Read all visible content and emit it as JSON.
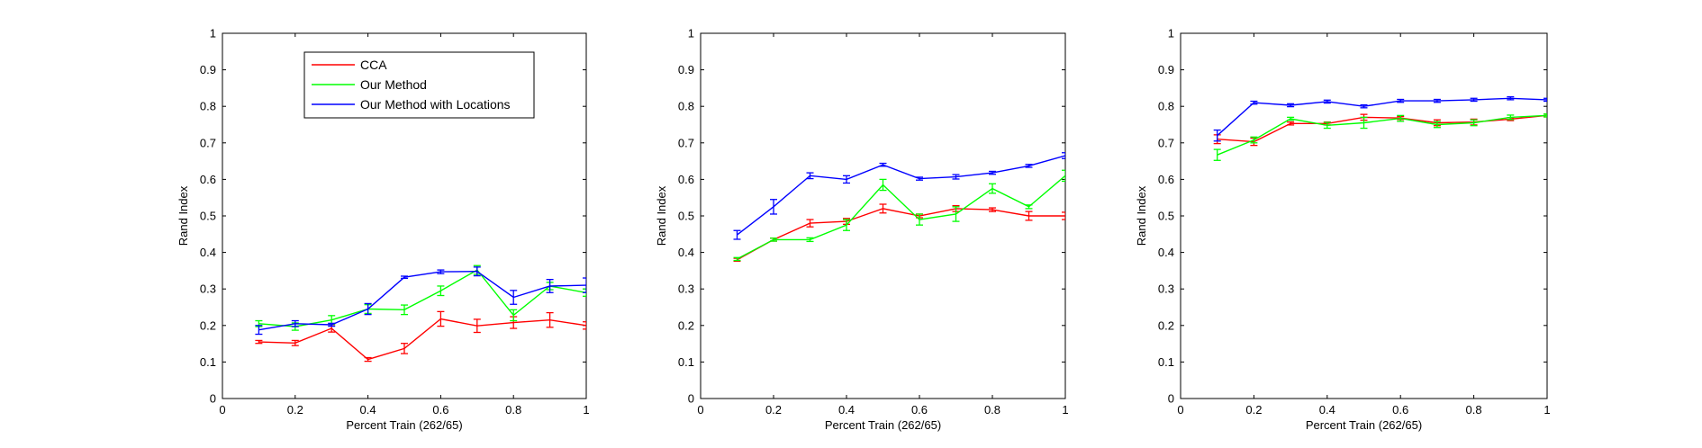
{
  "chart_data": [
    {
      "type": "line",
      "xlabel": "Percent Train (262/65)",
      "ylabel": "Rand Index",
      "xlim": [
        0,
        1
      ],
      "ylim": [
        0,
        1
      ],
      "xticks": [
        "0",
        "0.2",
        "0.4",
        "0.6",
        "0.8",
        "1"
      ],
      "yticks": [
        "0",
        "0.1",
        "0.2",
        "0.3",
        "0.4",
        "0.5",
        "0.6",
        "0.7",
        "0.8",
        "0.9",
        "1"
      ],
      "legend": "top-center",
      "x": [
        0.1,
        0.2,
        0.3,
        0.4,
        0.5,
        0.6,
        0.7,
        0.8,
        0.9,
        1.0
      ],
      "series": [
        {
          "name": "CCA",
          "color": "#ff0000",
          "values": [
            0.155,
            0.152,
            0.192,
            0.107,
            0.137,
            0.218,
            0.199,
            0.208,
            0.215,
            0.2
          ],
          "errors": [
            0.004,
            0.007,
            0.01,
            0.005,
            0.014,
            0.02,
            0.018,
            0.016,
            0.02,
            0.01
          ]
        },
        {
          "name": "Our Method",
          "color": "#00ff00",
          "values": [
            0.205,
            0.197,
            0.215,
            0.245,
            0.243,
            0.295,
            0.352,
            0.228,
            0.308,
            0.29
          ],
          "errors": [
            0.008,
            0.01,
            0.012,
            0.012,
            0.013,
            0.013,
            0.012,
            0.015,
            0.01,
            0.01
          ]
        },
        {
          "name": "Our Method with Locations",
          "color": "#0000ff",
          "values": [
            0.188,
            0.205,
            0.202,
            0.245,
            0.332,
            0.347,
            0.348,
            0.277,
            0.308,
            0.31
          ],
          "errors": [
            0.012,
            0.008,
            0.004,
            0.015,
            0.003,
            0.005,
            0.012,
            0.019,
            0.018,
            0.02
          ]
        }
      ]
    },
    {
      "type": "line",
      "xlabel": "Percent Train (262/65)",
      "ylabel": "Rand Index",
      "xlim": [
        0,
        1
      ],
      "ylim": [
        0,
        1
      ],
      "xticks": [
        "0",
        "0.2",
        "0.4",
        "0.6",
        "0.8",
        "1"
      ],
      "yticks": [
        "0",
        "0.1",
        "0.2",
        "0.3",
        "0.4",
        "0.5",
        "0.6",
        "0.7",
        "0.8",
        "0.9",
        "1"
      ],
      "x": [
        0.1,
        0.2,
        0.3,
        0.4,
        0.5,
        0.6,
        0.7,
        0.8,
        0.9,
        1.0
      ],
      "series": [
        {
          "name": "CCA",
          "color": "#ff0000",
          "values": [
            0.38,
            0.435,
            0.48,
            0.485,
            0.52,
            0.5,
            0.52,
            0.517,
            0.5,
            0.5
          ],
          "errors": [
            0.004,
            0.004,
            0.01,
            0.008,
            0.012,
            0.005,
            0.008,
            0.005,
            0.012,
            0.01
          ]
        },
        {
          "name": "Our Method",
          "color": "#00ff00",
          "values": [
            0.382,
            0.435,
            0.435,
            0.475,
            0.585,
            0.49,
            0.505,
            0.575,
            0.525,
            0.61
          ],
          "errors": [
            0.004,
            0.004,
            0.005,
            0.015,
            0.015,
            0.015,
            0.02,
            0.013,
            0.005,
            0.015
          ]
        },
        {
          "name": "Our Method with Locations",
          "color": "#0000ff",
          "values": [
            0.448,
            0.525,
            0.61,
            0.6,
            0.64,
            0.602,
            0.607,
            0.618,
            0.637,
            0.665
          ],
          "errors": [
            0.012,
            0.02,
            0.008,
            0.01,
            0.004,
            0.004,
            0.006,
            0.004,
            0.004,
            0.008
          ]
        }
      ]
    },
    {
      "type": "line",
      "xlabel": "Percent Train (262/65)",
      "ylabel": "Rand Index",
      "xlim": [
        0,
        1
      ],
      "ylim": [
        0,
        1
      ],
      "xticks": [
        "0",
        "0.2",
        "0.4",
        "0.6",
        "0.8",
        "1"
      ],
      "yticks": [
        "0",
        "0.1",
        "0.2",
        "0.3",
        "0.4",
        "0.5",
        "0.6",
        "0.7",
        "0.8",
        "0.9",
        "1"
      ],
      "x": [
        0.1,
        0.2,
        0.3,
        0.4,
        0.5,
        0.6,
        0.7,
        0.8,
        0.9,
        1.0
      ],
      "series": [
        {
          "name": "CCA",
          "color": "#ff0000",
          "values": [
            0.71,
            0.703,
            0.753,
            0.753,
            0.77,
            0.768,
            0.755,
            0.757,
            0.765,
            0.775
          ],
          "errors": [
            0.012,
            0.01,
            0.004,
            0.004,
            0.008,
            0.004,
            0.008,
            0.008,
            0.004,
            0.004
          ]
        },
        {
          "name": "Our Method",
          "color": "#00ff00",
          "values": [
            0.667,
            0.708,
            0.766,
            0.748,
            0.755,
            0.767,
            0.75,
            0.755,
            0.77,
            0.775
          ],
          "errors": [
            0.015,
            0.008,
            0.004,
            0.008,
            0.015,
            0.008,
            0.008,
            0.008,
            0.006,
            0.004
          ]
        },
        {
          "name": "Our Method with Locations",
          "color": "#0000ff",
          "values": [
            0.72,
            0.81,
            0.803,
            0.813,
            0.8,
            0.815,
            0.815,
            0.818,
            0.822,
            0.818
          ],
          "errors": [
            0.015,
            0.004,
            0.004,
            0.004,
            0.004,
            0.004,
            0.004,
            0.004,
            0.004,
            0.004
          ]
        }
      ]
    }
  ]
}
